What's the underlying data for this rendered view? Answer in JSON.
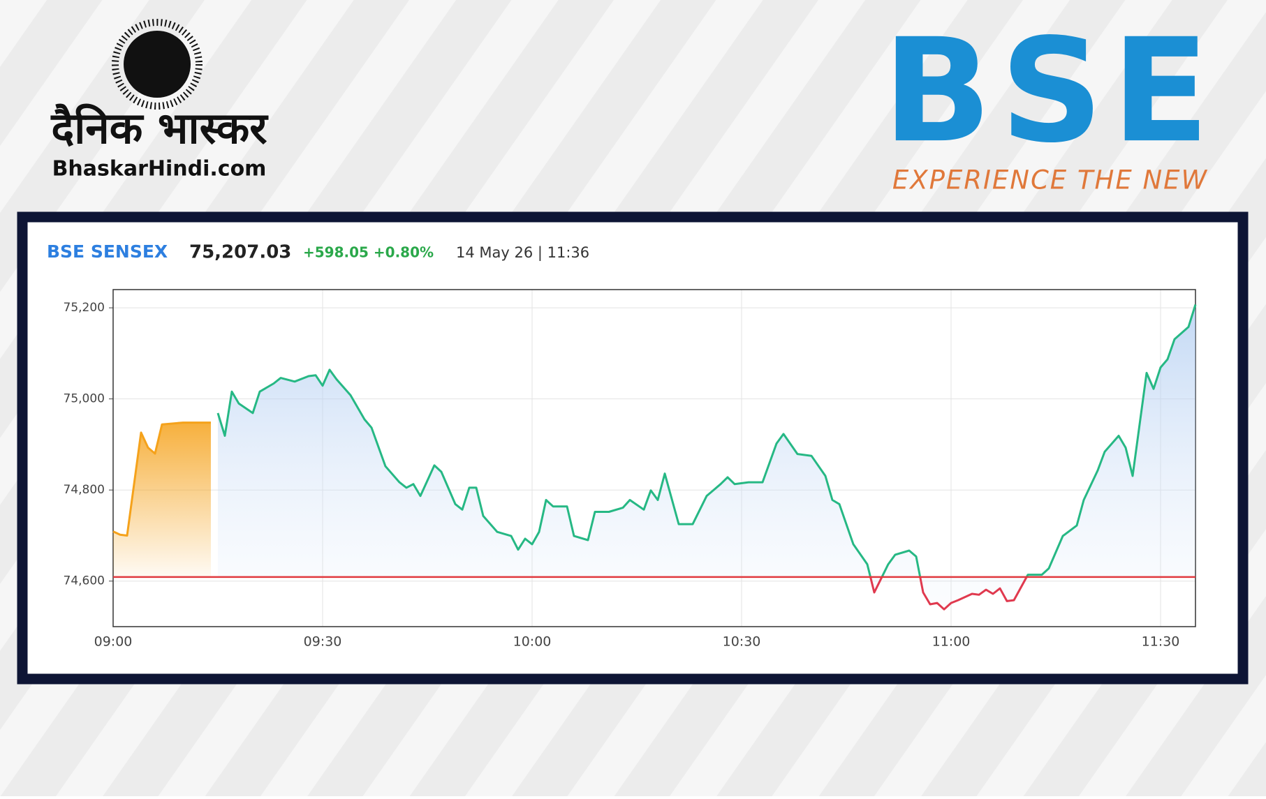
{
  "logos": {
    "hindi_name": "दैनिक भास्कर",
    "site": "BhaskarHindi.com",
    "exchange": "BSE",
    "tagline": "EXPERIENCE THE NEW"
  },
  "chart_data": {
    "type": "line",
    "title": "BSE SENSEX",
    "last_value": "75,207.03",
    "change": "+598.05 +0.80%",
    "timestamp": "14 May 26 | 11:36",
    "xlim": [
      "09:00",
      "11:35"
    ],
    "xticks": [
      "09:00",
      "09:30",
      "10:00",
      "10:30",
      "11:00",
      "11:30"
    ],
    "ylim": [
      74500,
      75240
    ],
    "yticks": [
      {
        "value": 74600,
        "label": "74,600"
      },
      {
        "value": 74800,
        "label": "74,800"
      },
      {
        "value": 75000,
        "label": "75,000"
      },
      {
        "value": 75200,
        "label": "75,200"
      }
    ],
    "grid": true,
    "reference_line": {
      "value": 74608.98,
      "color": "#e0393e"
    },
    "series": [
      {
        "color": "#f5a21b",
        "x": [
          "09:00",
          "09:01",
          "09:02",
          "09:04",
          "09:05",
          "09:06",
          "09:07",
          "09:10",
          "09:14"
        ],
        "values": [
          74709,
          74702,
          74700,
          74926,
          74893,
          74880,
          74944,
          74948,
          74948
        ]
      },
      {
        "color": "#26b884",
        "below_color": "#e0394e",
        "x": [
          "09:15",
          "09:16",
          "09:17",
          "09:18",
          "09:20",
          "09:21",
          "09:23",
          "09:24",
          "09:26",
          "09:28",
          "09:29",
          "09:30",
          "09:31",
          "09:32",
          "09:34",
          "09:36",
          "09:37",
          "09:39",
          "09:41",
          "09:42",
          "09:43",
          "09:44",
          "09:46",
          "09:47",
          "09:49",
          "09:50",
          "09:51",
          "09:52",
          "09:53",
          "09:55",
          "09:57",
          "09:58",
          "09:59",
          "10:00",
          "10:01",
          "10:02",
          "10:03",
          "10:05",
          "10:06",
          "10:08",
          "10:09",
          "10:11",
          "10:13",
          "10:14",
          "10:16",
          "10:17",
          "10:18",
          "10:19",
          "10:21",
          "10:23",
          "10:25",
          "10:27",
          "10:28",
          "10:29",
          "10:31",
          "10:33",
          "10:35",
          "10:36",
          "10:38",
          "10:40",
          "10:42",
          "10:43",
          "10:44",
          "10:46",
          "10:48",
          "10:49",
          "10:51",
          "10:52",
          "10:54",
          "10:55",
          "10:56",
          "10:57",
          "10:58",
          "10:59",
          "11:00",
          "11:01",
          "11:03",
          "11:04",
          "11:05",
          "11:06",
          "11:07",
          "11:08",
          "11:09",
          "11:11",
          "11:13",
          "11:14",
          "11:16",
          "11:18",
          "11:19",
          "11:21",
          "11:22",
          "11:24",
          "11:25",
          "11:26",
          "11:28",
          "11:29",
          "11:30",
          "11:31",
          "11:32",
          "11:34",
          "11:35"
        ],
        "values": [
          74969,
          74919,
          75016,
          74990,
          74969,
          75016,
          75034,
          75046,
          75038,
          75050,
          75052,
          75029,
          75064,
          75043,
          75008,
          74955,
          74937,
          74852,
          74817,
          74805,
          74813,
          74787,
          74854,
          74840,
          74769,
          74757,
          74805,
          74805,
          74743,
          74708,
          74699,
          74669,
          74693,
          74681,
          74708,
          74778,
          74764,
          74764,
          74699,
          74690,
          74752,
          74752,
          74761,
          74778,
          74757,
          74799,
          74778,
          74836,
          74725,
          74725,
          74787,
          74813,
          74828,
          74813,
          74817,
          74817,
          74902,
          74923,
          74879,
          74875,
          74831,
          74778,
          74769,
          74681,
          74637,
          74575,
          74637,
          74658,
          74667,
          74654,
          74575,
          74549,
          74552,
          74538,
          74552,
          74558,
          74572,
          74570,
          74581,
          74572,
          74584,
          74556,
          74558,
          74614,
          74614,
          74628,
          74699,
          74722,
          74778,
          74843,
          74884,
          74919,
          74893,
          74831,
          75057,
          75022,
          75069,
          75087,
          75131,
          75158,
          75207
        ]
      }
    ]
  }
}
